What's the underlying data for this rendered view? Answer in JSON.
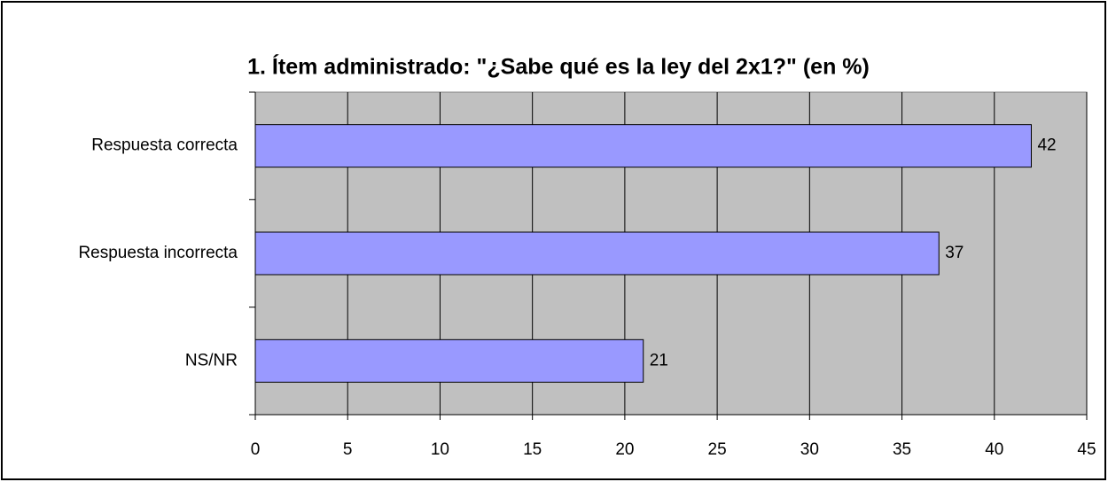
{
  "chart_data": {
    "type": "hbar",
    "title": "1. Ítem administrado: \"¿Sabe qué es la ley del 2x1?\" (en %)",
    "categories": [
      "Respuesta correcta",
      "Respuesta incorrecta",
      "NS/NR"
    ],
    "values": [
      42,
      37,
      21
    ],
    "color": "#9999ff",
    "xlim": [
      0,
      45
    ],
    "xticks": [
      0,
      5,
      10,
      15,
      20,
      25,
      30,
      35,
      40,
      45
    ],
    "grid": true
  }
}
